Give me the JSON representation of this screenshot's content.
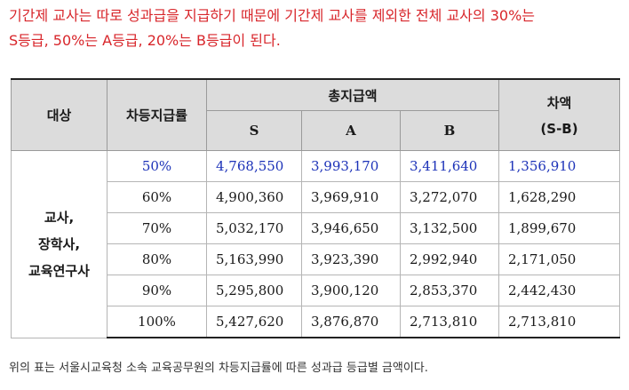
{
  "intro": {
    "line1": "기간제 교사는 따로 성과급을 지급하기 때문에 기간제 교사를 제외한 전체 교사의 30%는",
    "line2": "S등급, 50%는 A등급, 20%는 B등급이 된다."
  },
  "table": {
    "headers": {
      "target": "대상",
      "rate": "차등지급률",
      "total": "총지급액",
      "s": "S",
      "a": "A",
      "b": "B",
      "diff_line1": "차액",
      "diff_line2": "(S-B)"
    },
    "target_lines": [
      "교사,",
      "장학사,",
      "교육연구사"
    ],
    "rows": [
      {
        "rate": "50%",
        "s": "4,768,550",
        "a": "3,993,170",
        "b": "3,411,640",
        "diff": "1,356,910"
      },
      {
        "rate": "60%",
        "s": "4,900,360",
        "a": "3,969,910",
        "b": "3,272,070",
        "diff": "1,628,290"
      },
      {
        "rate": "70%",
        "s": "5,032,170",
        "a": "3,946,650",
        "b": "3,132,500",
        "diff": "1,899,670"
      },
      {
        "rate": "80%",
        "s": "5,163,990",
        "a": "3,923,390",
        "b": "2,992,940",
        "diff": "2,171,050"
      },
      {
        "rate": "90%",
        "s": "5,295,800",
        "a": "3,900,120",
        "b": "2,853,370",
        "diff": "2,442,430"
      },
      {
        "rate": "100%",
        "s": "5,427,620",
        "a": "3,876,870",
        "b": "2,713,810",
        "diff": "2,713,810"
      }
    ]
  },
  "caption": "위의 표는 서울시교육청 소속 교육공무원의 차등지급률에 따른 성과급 등급별 금액이다.",
  "colors": {
    "intro_text": "#d8262b",
    "highlight_row": "#1c32b8",
    "header_bg": "#dcdcdc"
  }
}
